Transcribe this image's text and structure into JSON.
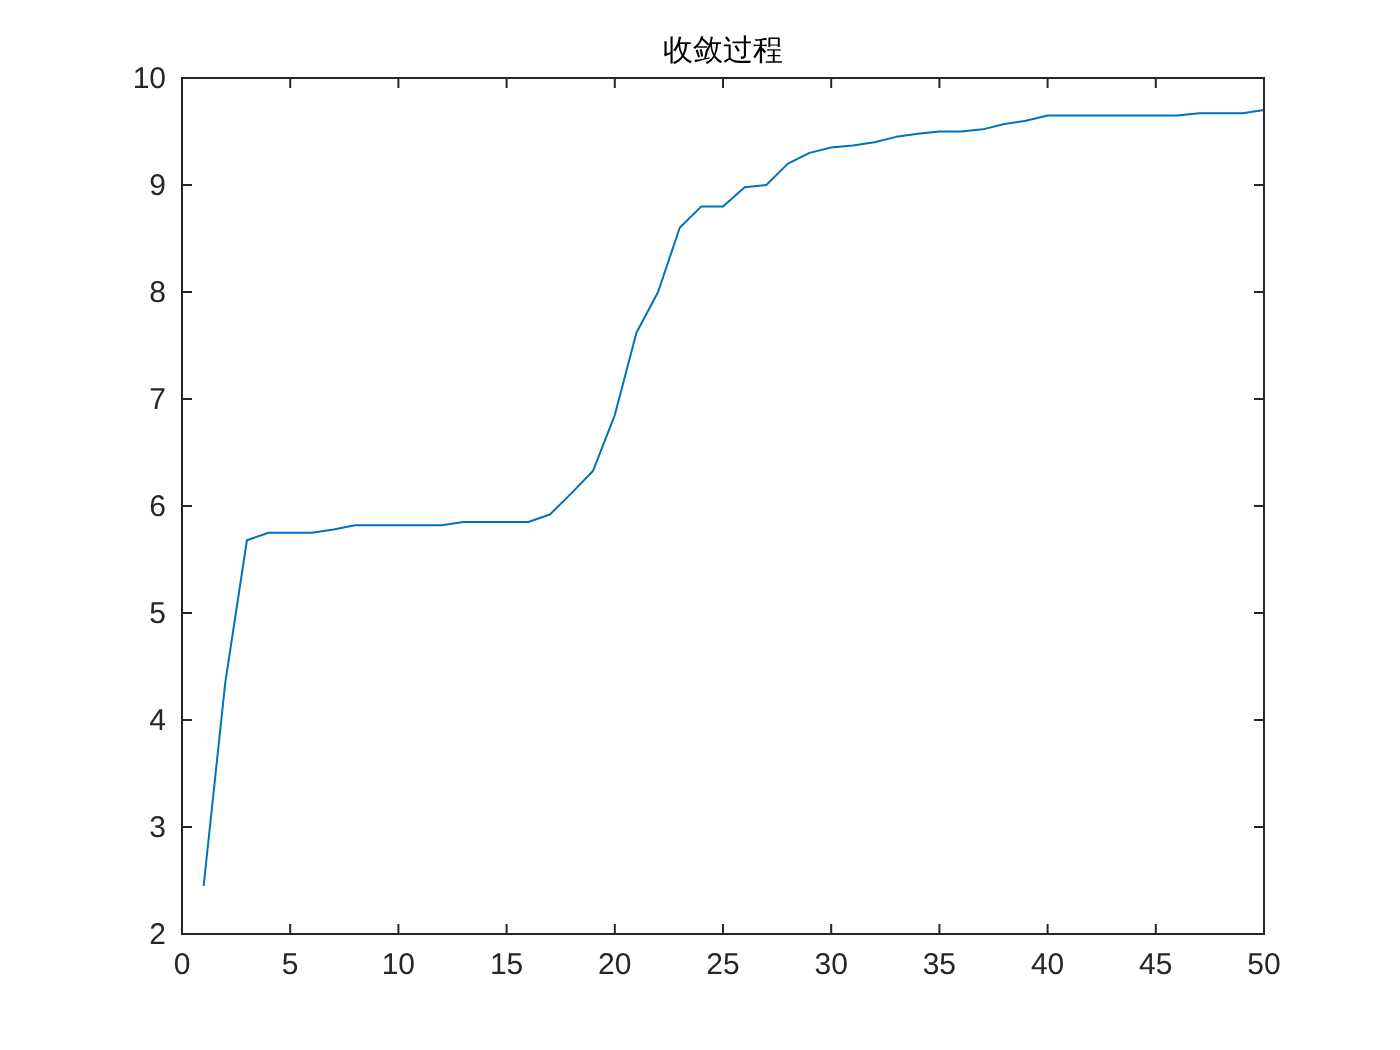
{
  "chart_data": {
    "type": "line",
    "title": "收敛过程",
    "x": [
      1,
      2,
      3,
      4,
      5,
      6,
      7,
      8,
      9,
      10,
      11,
      12,
      13,
      14,
      15,
      16,
      17,
      18,
      19,
      20,
      21,
      22,
      23,
      24,
      25,
      26,
      27,
      28,
      29,
      30,
      31,
      32,
      33,
      34,
      35,
      36,
      37,
      38,
      39,
      40,
      41,
      42,
      43,
      44,
      45,
      46,
      47,
      48,
      49,
      50
    ],
    "series": [
      {
        "color": "#0072bd",
        "values": [
          2.45,
          4.35,
          5.68,
          5.75,
          5.75,
          5.75,
          5.78,
          5.82,
          5.82,
          5.82,
          5.82,
          5.82,
          5.85,
          5.85,
          5.85,
          5.85,
          5.92,
          6.12,
          6.33,
          6.85,
          7.62,
          8.0,
          8.6,
          8.8,
          8.8,
          8.98,
          9.0,
          9.2,
          9.3,
          9.35,
          9.37,
          9.4,
          9.45,
          9.48,
          9.5,
          9.5,
          9.52,
          9.57,
          9.6,
          9.65,
          9.65,
          9.65,
          9.65,
          9.65,
          9.65,
          9.65,
          9.67,
          9.67,
          9.67,
          9.7
        ]
      }
    ],
    "xlim": [
      0,
      50
    ],
    "xticks": [
      0,
      5,
      10,
      15,
      20,
      25,
      30,
      35,
      40,
      45,
      50
    ],
    "ylim": [
      2,
      10
    ],
    "yticks": [
      2,
      3,
      4,
      5,
      6,
      7,
      8,
      9,
      10
    ],
    "grid": false,
    "marker": "none",
    "line_style": "solid"
  }
}
